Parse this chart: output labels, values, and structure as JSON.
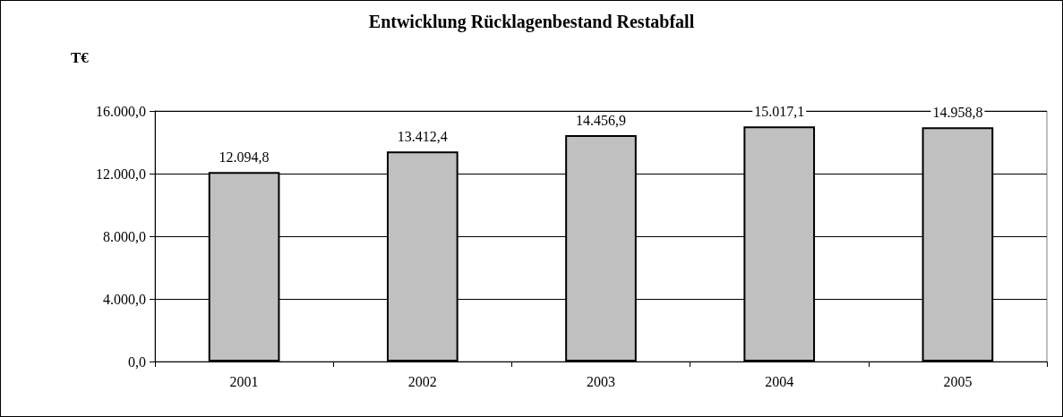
{
  "chart_data": {
    "type": "bar",
    "title": "Entwicklung Rücklagenbestand Restabfall",
    "ylabel": "T€",
    "categories": [
      "2001",
      "2002",
      "2003",
      "2004",
      "2005"
    ],
    "values": [
      12094.8,
      13412.4,
      14456.9,
      15017.1,
      14958.8
    ],
    "value_labels": [
      "12.094,8",
      "13.412,4",
      "14.456,9",
      "15.017,1",
      "14.958,8"
    ],
    "color": "#c0c0c0",
    "ylim": [
      0,
      16000
    ],
    "yticks": [
      {
        "value": 0,
        "label": "0,0"
      },
      {
        "value": 4000,
        "label": "4.000,0"
      },
      {
        "value": 8000,
        "label": "8.000,0"
      },
      {
        "value": 12000,
        "label": "12.000,0"
      },
      {
        "value": 16000,
        "label": "16.000,0"
      }
    ],
    "grid": "y"
  }
}
